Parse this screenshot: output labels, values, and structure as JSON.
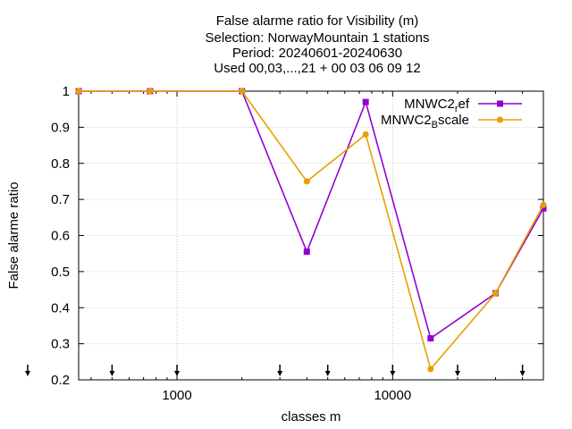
{
  "chart_data": {
    "type": "line",
    "title_lines": [
      "False alarme ratio  for Visibility (m)",
      "Selection: NorwayMountain      1 stations",
      "Period: 20240601-20240630",
      "Used 00,03,...,21 + 00 03 06 09 12"
    ],
    "xlabel": "classes m",
    "ylabel": "False alarme ratio",
    "xscale": "log",
    "xlim": [
      350,
      50000
    ],
    "ylim": [
      0.2,
      1.0
    ],
    "x_ticks": [
      1000,
      10000
    ],
    "x_tick_labels": [
      "1000",
      "10000"
    ],
    "y_ticks": [
      0.2,
      0.3,
      0.4,
      0.5,
      0.6,
      0.7,
      0.8,
      0.9,
      1.0
    ],
    "y_tick_labels": [
      "0.2",
      "0.3",
      "0.4",
      "0.5",
      "0.6",
      "0.7",
      "0.8",
      "0.9",
      "1"
    ],
    "class_marker_x": [
      350,
      500,
      1000,
      3000,
      5000,
      10000,
      20000,
      40000
    ],
    "grid": true,
    "legend_position": "top-right",
    "series": [
      {
        "name": "MNWC2_ref",
        "legend_label": "MNWC2",
        "legend_sub": "r",
        "legend_tail": "ef",
        "color": "#9400d3",
        "x": [
          350,
          750,
          2000,
          4000,
          7500,
          15000,
          30000,
          50000
        ],
        "y": [
          1.0,
          1.0,
          1.0,
          0.555,
          0.97,
          0.315,
          0.44,
          0.675
        ]
      },
      {
        "name": "MNWC2_Bscale",
        "legend_label": "MNWC2",
        "legend_sub": "B",
        "legend_tail": "scale",
        "color": "#e69f00",
        "x": [
          350,
          750,
          2000,
          4000,
          7500,
          15000,
          30000,
          50000
        ],
        "y": [
          1.0,
          1.0,
          1.0,
          0.75,
          0.88,
          0.23,
          0.44,
          0.685
        ]
      }
    ]
  }
}
